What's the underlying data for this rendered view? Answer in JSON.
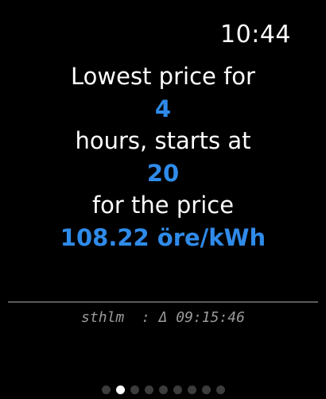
{
  "status_bar": {
    "time": "10:44"
  },
  "message": {
    "line1": "Lowest price for",
    "hours": "4",
    "line3": "hours, starts at",
    "start_hour": "20",
    "line5": "for the price",
    "price": "108.22 öre/kWh"
  },
  "footer": {
    "text": "sthlm  : Δ 09:15:46"
  },
  "pager": {
    "count": 9,
    "active_index": 1
  },
  "colors": {
    "background": "#000000",
    "accent": "#2f8bea",
    "text": "#ffffff",
    "muted": "#9a9a9a"
  }
}
